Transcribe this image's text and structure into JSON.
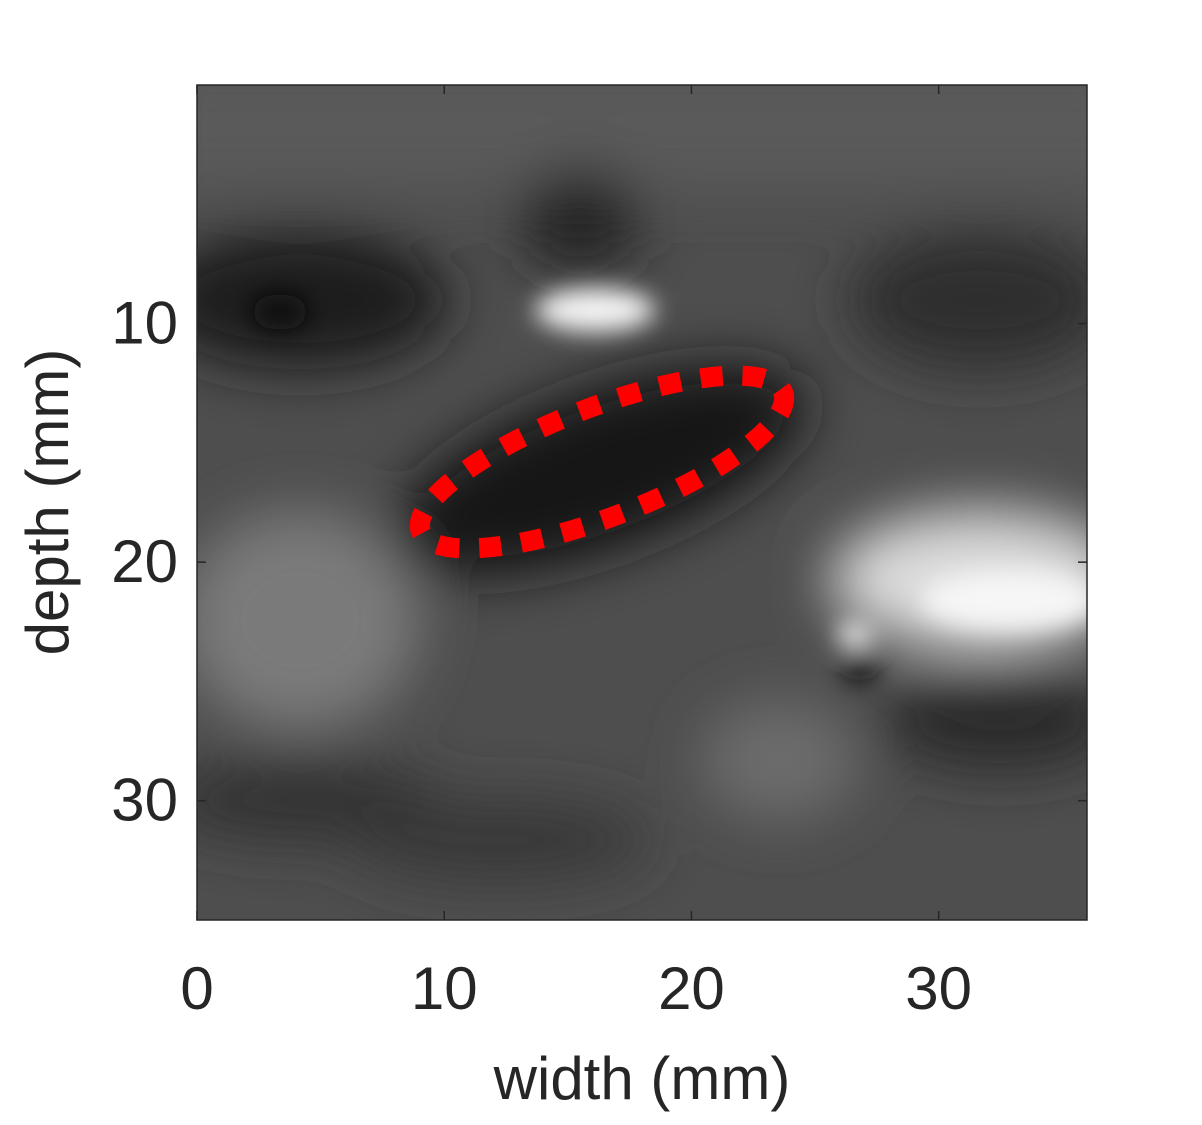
{
  "chart_data": {
    "type": "image",
    "x_label": "width (mm)",
    "y_label": "depth (mm)",
    "xlim": [
      0,
      36
    ],
    "ylim": [
      0,
      35
    ],
    "y_reversed": true,
    "xticks": [
      0,
      10,
      20,
      30
    ],
    "yticks": [
      10,
      20,
      30
    ]
  }
}
